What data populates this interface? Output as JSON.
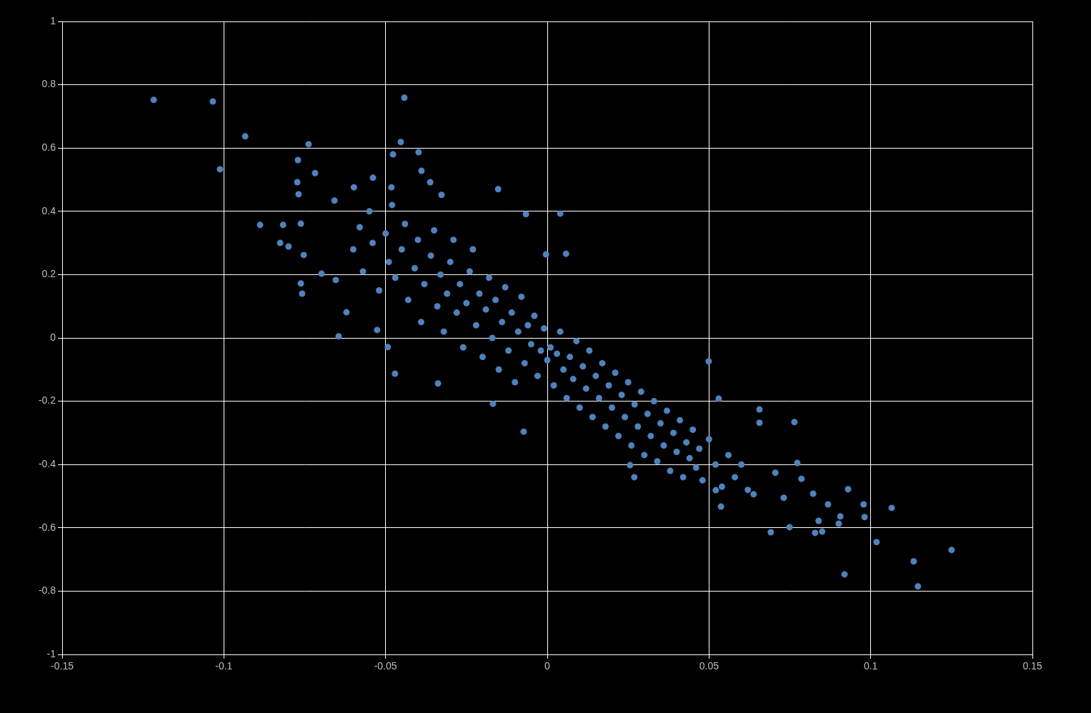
{
  "chart_data": {
    "type": "scatter",
    "color": "#4f81bd",
    "marker": "circle",
    "grid": true,
    "xlim": [
      -0.15,
      0.15
    ],
    "xticks": [
      -0.15,
      -0.1,
      -0.05,
      0,
      0.05,
      0.1,
      0.15
    ],
    "ylim": [
      -1,
      1
    ],
    "yticks": [
      -1,
      -0.8,
      -0.6,
      -0.4,
      -0.2,
      0,
      0.2,
      0.4,
      0.6,
      0.8,
      1
    ],
    "x": [
      -0.1217,
      -0.1034,
      -0.0934,
      -0.1012,
      -0.0442,
      -0.0738,
      -0.0771,
      -0.0718,
      -0.0477,
      -0.0453,
      -0.0398,
      -0.0389,
      -0.0888,
      -0.0817,
      -0.0826,
      -0.08,
      -0.0762,
      -0.0753,
      -0.0762,
      -0.0758,
      -0.0773,
      -0.0769,
      -0.0645,
      -0.0658,
      -0.0598,
      -0.0539,
      -0.0482,
      -0.0362,
      -0.0327,
      -0.0152,
      0.004,
      -0.0066,
      0.0058,
      -0.0004,
      -0.0471,
      -0.0493,
      -0.0526,
      -0.0621,
      -0.0654,
      -0.0698,
      -0.0073,
      -0.0168,
      -0.0338,
      0.0499,
      0.053,
      0.0656,
      0.0764,
      0.0656,
      0.0773,
      0.0786,
      0.0822,
      0.0868,
      0.093,
      0.0978,
      0.1065,
      0.0981,
      0.0906,
      0.0839,
      0.0828,
      0.085,
      0.0901,
      0.0691,
      0.0749,
      0.1018,
      0.0919,
      0.1133,
      0.1146,
      0.125,
      0.0537,
      0.0521,
      0.0638,
      0.0731,
      0.0705,
      0.0269,
      0.0256,
      -0.06,
      -0.058,
      -0.057,
      -0.055,
      -0.054,
      -0.052,
      -0.05,
      -0.049,
      -0.048,
      -0.047,
      -0.045,
      -0.044,
      -0.043,
      -0.041,
      -0.04,
      -0.039,
      -0.038,
      -0.036,
      -0.035,
      -0.034,
      -0.033,
      -0.032,
      -0.031,
      -0.03,
      -0.029,
      -0.028,
      -0.027,
      -0.026,
      -0.025,
      -0.024,
      -0.023,
      -0.022,
      -0.021,
      -0.02,
      -0.019,
      -0.018,
      -0.017,
      -0.016,
      -0.015,
      -0.014,
      -0.013,
      -0.012,
      -0.011,
      -0.01,
      -0.009,
      -0.008,
      -0.007,
      -0.006,
      -0.005,
      -0.004,
      -0.003,
      -0.002,
      -0.001,
      0,
      0.001,
      0.002,
      0.003,
      0.004,
      0.005,
      0.006,
      0.007,
      0.008,
      0.009,
      0.01,
      0.011,
      0.012,
      0.013,
      0.014,
      0.015,
      0.016,
      0.017,
      0.018,
      0.019,
      0.02,
      0.021,
      0.022,
      0.023,
      0.024,
      0.025,
      0.026,
      0.027,
      0.028,
      0.029,
      0.03,
      0.031,
      0.032,
      0.033,
      0.034,
      0.035,
      0.036,
      0.037,
      0.038,
      0.039,
      0.04,
      0.041,
      0.042,
      0.043,
      0.044,
      0.045,
      0.046,
      0.047,
      0.048,
      0.05,
      0.052,
      0.054,
      0.056,
      0.058,
      0.06,
      0.062
    ],
    "values": [
      0.752,
      0.747,
      0.637,
      0.533,
      0.759,
      0.612,
      0.562,
      0.521,
      0.58,
      0.619,
      0.587,
      0.528,
      0.357,
      0.357,
      0.3,
      0.289,
      0.361,
      0.262,
      0.172,
      0.14,
      0.492,
      0.454,
      0.005,
      0.434,
      0.476,
      0.506,
      0.476,
      0.492,
      0.452,
      0.47,
      0.393,
      0.391,
      0.266,
      0.264,
      -0.113,
      -0.029,
      0.025,
      0.081,
      0.183,
      0.203,
      -0.296,
      -0.208,
      -0.144,
      -0.074,
      -0.192,
      -0.226,
      -0.266,
      -0.268,
      -0.395,
      -0.445,
      -0.492,
      -0.526,
      -0.478,
      -0.526,
      -0.537,
      -0.566,
      -0.564,
      -0.578,
      -0.616,
      -0.612,
      -0.587,
      -0.614,
      -0.598,
      -0.645,
      -0.747,
      -0.706,
      -0.785,
      -0.67,
      -0.533,
      -0.481,
      -0.494,
      -0.505,
      -0.426,
      -0.44,
      -0.402,
      0.28,
      0.35,
      0.21,
      0.4,
      0.3,
      0.15,
      0.33,
      0.24,
      0.42,
      0.19,
      0.28,
      0.36,
      0.12,
      0.22,
      0.31,
      0.05,
      0.17,
      0.26,
      0.34,
      0.1,
      0.2,
      0.02,
      0.14,
      0.24,
      0.31,
      0.08,
      0.17,
      -0.03,
      0.11,
      0.21,
      0.28,
      0.04,
      0.14,
      -0.06,
      0.09,
      0.19,
      0,
      0.12,
      -0.1,
      0.05,
      0.16,
      -0.04,
      0.08,
      -0.14,
      0.02,
      0.13,
      -0.08,
      0.04,
      -0.02,
      0.07,
      -0.12,
      -0.04,
      0.03,
      -0.07,
      -0.03,
      -0.15,
      -0.05,
      0.02,
      -0.1,
      -0.19,
      -0.06,
      -0.13,
      -0.01,
      -0.22,
      -0.09,
      -0.16,
      -0.04,
      -0.25,
      -0.12,
      -0.19,
      -0.08,
      -0.28,
      -0.15,
      -0.22,
      -0.11,
      -0.31,
      -0.18,
      -0.25,
      -0.14,
      -0.34,
      -0.21,
      -0.28,
      -0.17,
      -0.37,
      -0.24,
      -0.31,
      -0.2,
      -0.39,
      -0.27,
      -0.34,
      -0.23,
      -0.42,
      -0.3,
      -0.36,
      -0.26,
      -0.44,
      -0.33,
      -0.38,
      -0.29,
      -0.41,
      -0.35,
      -0.45,
      -0.32,
      -0.4,
      -0.47,
      -0.37,
      -0.44,
      -0.4,
      -0.48
    ]
  }
}
